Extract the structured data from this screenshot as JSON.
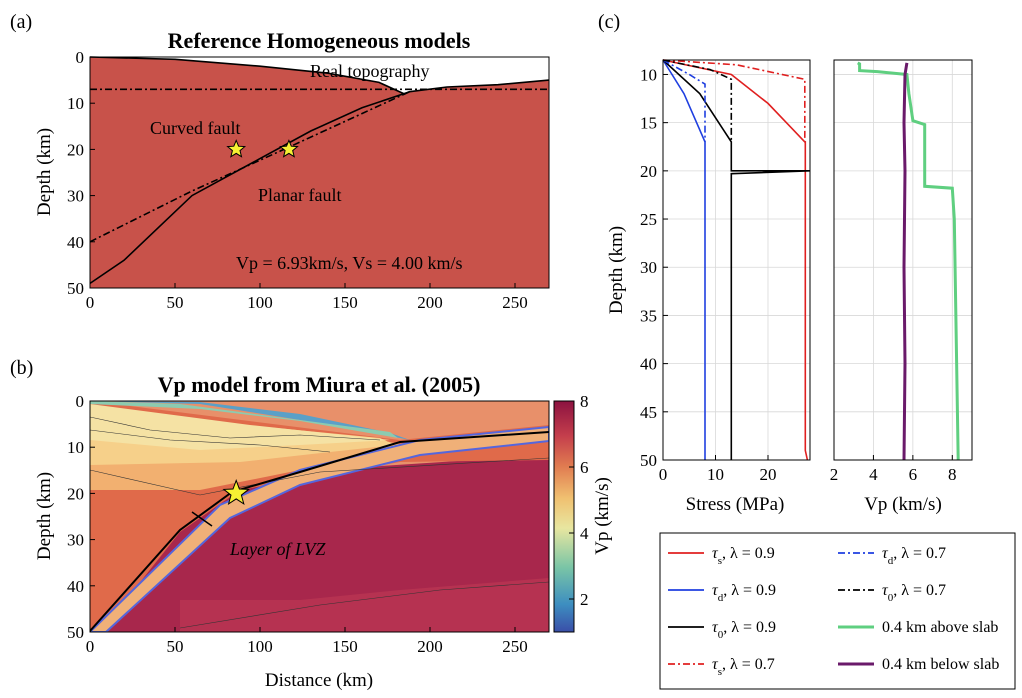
{
  "panel_a": {
    "label": "(a)",
    "title": "Reference Homogeneous models",
    "ylabel": "Depth (km)",
    "xticks": [
      "0",
      "50",
      "100",
      "150",
      "200",
      "250"
    ],
    "yticks": [
      "0",
      "10",
      "20",
      "30",
      "40",
      "50"
    ],
    "annotations": {
      "topography": "Real topography",
      "curved": "Curved fault",
      "planar": "Planar fault",
      "velocities": "Vp = 6.93km/s, Vs = 4.00 km/s"
    },
    "colors": {
      "background": "#c8524a"
    }
  },
  "panel_b": {
    "label": "(b)",
    "title": "Vp model from Miura et al. (2005)",
    "ylabel": "Depth (km)",
    "xlabel": "Distance (km)",
    "xticks": [
      "0",
      "50",
      "100",
      "150",
      "200",
      "250"
    ],
    "yticks": [
      "0",
      "10",
      "20",
      "30",
      "40",
      "50"
    ],
    "annotation": "Layer of LVZ",
    "colorbar": {
      "label": "Vp (km/s)",
      "ticks": [
        "2",
        "4",
        "6",
        "8"
      ]
    }
  },
  "panel_c": {
    "label": "(c)",
    "ylabel": "Depth (km)",
    "stress_xlabel": "Stress (MPa)",
    "vp_xlabel": "Vp (km/s)",
    "stress_xticks": [
      "0",
      "10",
      "20"
    ],
    "vp_xticks": [
      "2",
      "4",
      "6",
      "8"
    ],
    "yticks": [
      "10",
      "15",
      "20",
      "25",
      "30",
      "35",
      "40",
      "45",
      "50"
    ],
    "legend": [
      {
        "sym": "τ",
        "sub": "s",
        "lam": ", λ = 0.9",
        "color": "#e02020",
        "dash": "solid"
      },
      {
        "sym": "τ",
        "sub": "d",
        "lam": ", λ = 0.7",
        "color": "#1f3fe0",
        "dash": "dashdot"
      },
      {
        "sym": "τ",
        "sub": "d",
        "lam": ", λ = 0.9",
        "color": "#1f3fe0",
        "dash": "solid"
      },
      {
        "sym": "τ",
        "sub": "0",
        "lam": ", λ = 0.7",
        "color": "#000000",
        "dash": "dashdot"
      },
      {
        "sym": "τ",
        "sub": "0",
        "lam": ", λ = 0.9",
        "color": "#000000",
        "dash": "solid"
      },
      {
        "text": "0.4 km above slab",
        "color": "#5fcf80",
        "dash": "solid"
      },
      {
        "sym": "τ",
        "sub": "s",
        "lam": ", λ = 0.7",
        "color": "#e02020",
        "dash": "dashdot"
      },
      {
        "text": "0.4 km below slab",
        "color": "#6a1a6a",
        "dash": "solid"
      }
    ]
  },
  "chart_data": [
    {
      "type": "line",
      "panel": "a",
      "title": "Reference Homogeneous models",
      "xlim": [
        0,
        270
      ],
      "ylim": [
        0,
        50
      ],
      "ylabel": "Depth (km)",
      "series": [
        {
          "name": "Real topography",
          "x": [
            0,
            50,
            100,
            140,
            170,
            185,
            188,
            210,
            240,
            270
          ],
          "y": [
            0,
            0.5,
            2,
            3.5,
            5.5,
            8,
            7.5,
            6.5,
            6,
            5
          ]
        },
        {
          "name": "Curved fault",
          "x": [
            0,
            20,
            40,
            60,
            75,
            100,
            130,
            160,
            188
          ],
          "y": [
            49,
            44,
            37,
            30,
            27,
            22,
            16,
            11,
            7.5
          ]
        },
        {
          "name": "Planar fault",
          "x": [
            0,
            60,
            120,
            188
          ],
          "y": [
            40,
            29,
            19,
            7.5
          ]
        },
        {
          "x": [
            0,
            270
          ],
          "y": [
            7,
            7
          ]
        }
      ],
      "points": [
        {
          "x": 86,
          "y": 20
        },
        {
          "x": 117,
          "y": 20
        }
      ]
    },
    {
      "type": "heatmap",
      "panel": "b",
      "title": "Vp model from Miura et al. (2005)",
      "xlabel": "Distance (km)",
      "ylabel": "Depth (km)",
      "xlim": [
        0,
        270
      ],
      "ylim": [
        0,
        50
      ],
      "colorbar": {
        "label": "Vp (km/s)",
        "range": [
          1,
          8
        ]
      },
      "points": [
        {
          "x": 86,
          "y": 20
        }
      ]
    },
    {
      "type": "line",
      "panel": "c-stress",
      "xlabel": "Stress (MPa)",
      "ylabel": "Depth (km)",
      "xlim": [
        0,
        28
      ],
      "ylim": [
        8.5,
        50
      ],
      "series": [
        {
          "name": "τs, λ = 0.9",
          "x": [
            0,
            13,
            20,
            27,
            27.1,
            27.1,
            27.5
          ],
          "y": [
            8.5,
            10,
            13,
            17,
            17,
            49,
            50
          ]
        },
        {
          "name": "τd, λ = 0.9",
          "x": [
            0,
            4,
            8,
            8,
            8
          ],
          "y": [
            8.5,
            12,
            17,
            17,
            50
          ]
        },
        {
          "name": "τ0, λ = 0.9",
          "x": [
            0,
            7,
            13,
            13,
            28,
            13,
            13
          ],
          "y": [
            8.5,
            12,
            17,
            20,
            20,
            20.3,
            50
          ]
        },
        {
          "name": "τs, λ = 0.7",
          "x": [
            0,
            14,
            27,
            27
          ],
          "y": [
            8.5,
            9,
            10.5,
            17
          ]
        },
        {
          "name": "τd, λ = 0.7",
          "x": [
            0,
            5,
            8,
            8
          ],
          "y": [
            8.5,
            10,
            11,
            17
          ]
        },
        {
          "name": "τ0, λ = 0.7",
          "x": [
            0,
            9,
            13,
            13
          ],
          "y": [
            8.5,
            9.5,
            10.5,
            17
          ]
        }
      ]
    },
    {
      "type": "line",
      "panel": "c-vp",
      "xlabel": "Vp (km/s)",
      "xlim": [
        2,
        9
      ],
      "ylim": [
        8.5,
        50
      ],
      "series": [
        {
          "name": "0.4 km above slab",
          "x": [
            3.2,
            3.3,
            3.3,
            4.2,
            5.7,
            5.8,
            6.0,
            6.6,
            6.6,
            8.0,
            8.1,
            8.3
          ],
          "y": [
            8.8,
            8.9,
            9.6,
            9.7,
            10,
            12,
            14.8,
            15.2,
            21.6,
            21.8,
            25,
            50
          ]
        },
        {
          "name": "0.4 km below slab",
          "x": [
            5.7,
            5.6,
            5.55,
            5.6,
            5.55,
            5.6,
            5.55
          ],
          "y": [
            8.8,
            10,
            15,
            20,
            30,
            40,
            50
          ]
        }
      ]
    }
  ]
}
